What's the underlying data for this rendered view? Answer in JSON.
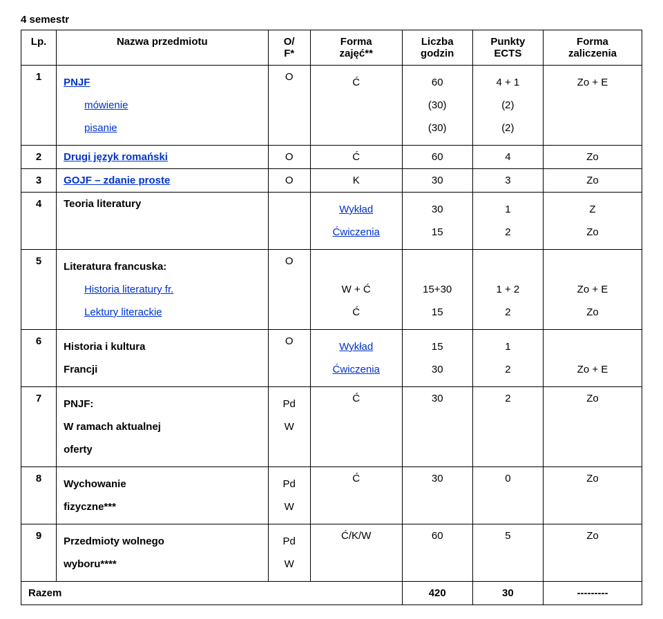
{
  "title": "4 semestr",
  "headers": {
    "lp": "Lp.",
    "name": "Nazwa przedmiotu",
    "of1": "O/",
    "of2": "F*",
    "forma1": "Forma",
    "forma2": "zajęć**",
    "godzin1": "Liczba",
    "godzin2": "godzin",
    "ects1": "Punkty",
    "ects2": "ECTS",
    "zal1": "Forma",
    "zal2": "zaliczenia"
  },
  "r1": {
    "lp": "1",
    "name1": "PNJF",
    "name2": "mówienie",
    "name3": "pisanie",
    "of": "O",
    "f1": "Ć",
    "g1": "60",
    "g2": "(30)",
    "g3": "(30)",
    "e1": "4 + 1",
    "e2": "(2)",
    "e3": "(2)",
    "z1": "Zo + E"
  },
  "r2": {
    "lp": "2",
    "name": "Drugi język romański",
    "of": "O",
    "f": "Ć",
    "g": "60",
    "e": "4",
    "z": "Zo"
  },
  "r3": {
    "lp": "3",
    "name": "GOJF – zdanie proste",
    "of": "O",
    "f": "K",
    "g": "30",
    "e": "3",
    "z": "Zo"
  },
  "r4": {
    "lp": "4",
    "name": "Teoria literatury",
    "f1": "Wykład",
    "f2": "Ćwiczenia",
    "g1": "30",
    "g2": "15",
    "e1": "1",
    "e2": "2",
    "z1": "Z",
    "z2": "Zo"
  },
  "r5": {
    "lp": "5",
    "name1": "Literatura francuska:",
    "name2": "Historia literatury fr.",
    "name3": "Lektury literackie",
    "of": "O",
    "f2": "W + Ć",
    "f3": "Ć",
    "g2": "15+30",
    "g3": "15",
    "e2": "1 + 2",
    "e3": "2",
    "z2": "Zo + E",
    "z3": "Zo"
  },
  "r6": {
    "lp": "6",
    "name1": "Historia i kultura",
    "name2": "Francji",
    "of": "O",
    "f1": "Wykład",
    "f2": "Ćwiczenia",
    "g1": "15",
    "g2": "30",
    "e1": "1",
    "e2": "2",
    "z2": "Zo + E"
  },
  "r7": {
    "lp": "7",
    "name1": "PNJF:",
    "name2": "W ramach aktualnej",
    "name3": "oferty",
    "of1": "Pd",
    "of2": "W",
    "f": "Ć",
    "g": "30",
    "e": "2",
    "z": "Zo"
  },
  "r8": {
    "lp": "8",
    "name1": "Wychowanie",
    "name2": "fizyczne***",
    "of1": "Pd",
    "of2": "W",
    "f": "Ć",
    "g": "30",
    "e": "0",
    "z": "Zo"
  },
  "r9": {
    "lp": "9",
    "name1": "Przedmioty wolnego",
    "name2": "wyboru****",
    "of1": "Pd",
    "of2": "W",
    "f": "Ć/K/W",
    "g": "60",
    "e": "5",
    "z": "Zo"
  },
  "total": {
    "label": "Razem",
    "g": "420",
    "e": "30",
    "z": "---------"
  }
}
